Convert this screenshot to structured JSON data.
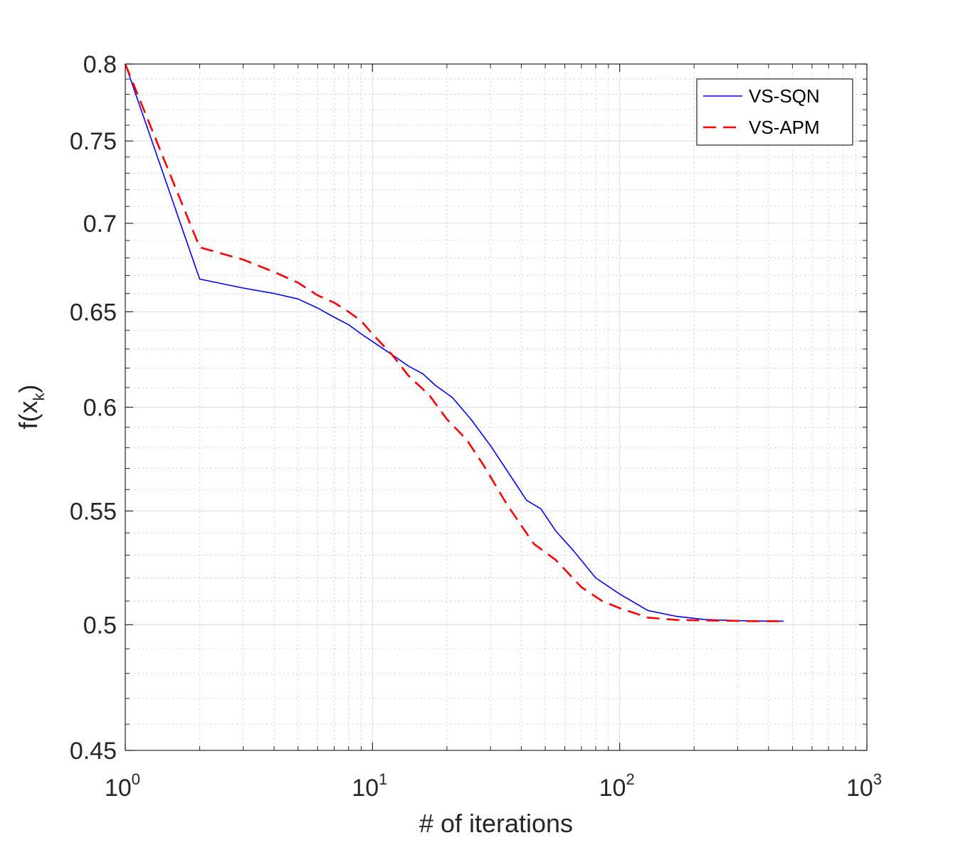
{
  "chart_data": {
    "type": "line",
    "xscale": "log",
    "yscale": "log",
    "xlabel": "# of iterations",
    "ylabel_base": "f(x",
    "ylabel_sub": "k",
    "ylabel_close": ")",
    "xlim": [
      1,
      1000
    ],
    "ylim": [
      0.45,
      0.8
    ],
    "grid": true,
    "minor_grid": true,
    "legend_position": "top-right",
    "xticks": [
      {
        "value": 1,
        "base": "10",
        "exp": "0"
      },
      {
        "value": 10,
        "base": "10",
        "exp": "1"
      },
      {
        "value": 100,
        "base": "10",
        "exp": "2"
      },
      {
        "value": 1000,
        "base": "10",
        "exp": "3"
      }
    ],
    "yticks": [
      {
        "value": 0.45,
        "label": "0.45"
      },
      {
        "value": 0.5,
        "label": "0.5"
      },
      {
        "value": 0.55,
        "label": "0.55"
      },
      {
        "value": 0.6,
        "label": "0.6"
      },
      {
        "value": 0.65,
        "label": "0.65"
      },
      {
        "value": 0.7,
        "label": "0.7"
      },
      {
        "value": 0.75,
        "label": "0.75"
      },
      {
        "value": 0.8,
        "label": "0.8"
      }
    ],
    "series": [
      {
        "name": "VS-SQN",
        "color": "#0000ff",
        "style": "solid",
        "points": [
          [
            1,
            0.8
          ],
          [
            2,
            0.668
          ],
          [
            3,
            0.663
          ],
          [
            4,
            0.66
          ],
          [
            5,
            0.657
          ],
          [
            6,
            0.652
          ],
          [
            7,
            0.647
          ],
          [
            8,
            0.643
          ],
          [
            9,
            0.638
          ],
          [
            10,
            0.634
          ],
          [
            12,
            0.627
          ],
          [
            14,
            0.621
          ],
          [
            16,
            0.617
          ],
          [
            18,
            0.611
          ],
          [
            21,
            0.605
          ],
          [
            25,
            0.594
          ],
          [
            30,
            0.581
          ],
          [
            35,
            0.569
          ],
          [
            42,
            0.555
          ],
          [
            48,
            0.551
          ],
          [
            55,
            0.541
          ],
          [
            65,
            0.532
          ],
          [
            80,
            0.52
          ],
          [
            100,
            0.513
          ],
          [
            130,
            0.506
          ],
          [
            170,
            0.5035
          ],
          [
            220,
            0.5022
          ],
          [
            300,
            0.5017
          ],
          [
            400,
            0.5015
          ],
          [
            460,
            0.5015
          ]
        ]
      },
      {
        "name": "VS-APM",
        "color": "#ff0000",
        "style": "dashed",
        "points": [
          [
            1,
            0.8
          ],
          [
            2,
            0.686
          ],
          [
            3,
            0.679
          ],
          [
            4,
            0.672
          ],
          [
            5,
            0.666
          ],
          [
            6,
            0.659
          ],
          [
            7,
            0.655
          ],
          [
            8,
            0.65
          ],
          [
            9,
            0.645
          ],
          [
            10,
            0.638
          ],
          [
            12,
            0.627
          ],
          [
            14,
            0.616
          ],
          [
            17,
            0.606
          ],
          [
            20,
            0.594
          ],
          [
            24,
            0.584
          ],
          [
            28,
            0.572
          ],
          [
            35,
            0.553
          ],
          [
            45,
            0.535
          ],
          [
            55,
            0.528
          ],
          [
            70,
            0.516
          ],
          [
            85,
            0.51
          ],
          [
            100,
            0.507
          ],
          [
            130,
            0.503
          ],
          [
            170,
            0.502
          ],
          [
            250,
            0.5017
          ],
          [
            350,
            0.5015
          ],
          [
            460,
            0.5015
          ]
        ]
      }
    ]
  }
}
